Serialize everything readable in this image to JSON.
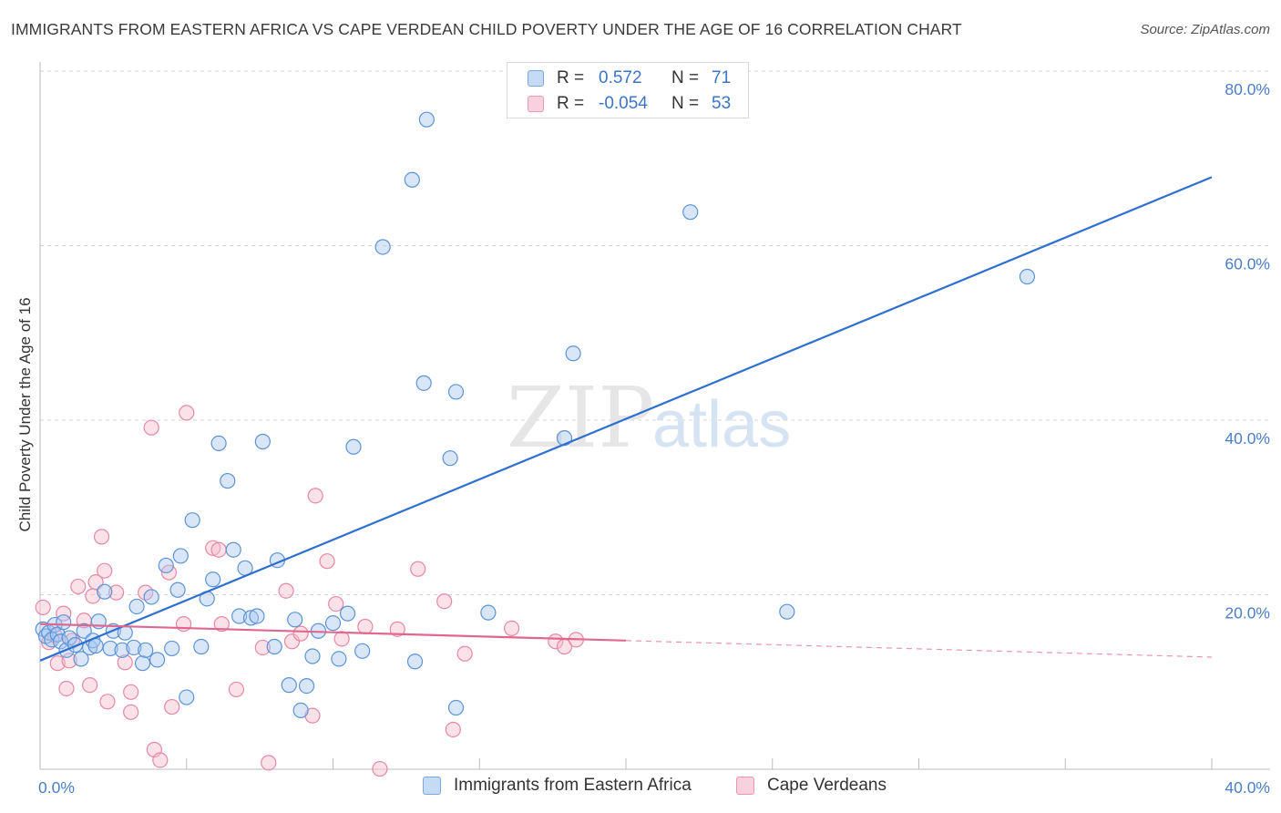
{
  "header": {
    "title": "IMMIGRANTS FROM EASTERN AFRICA VS CAPE VERDEAN CHILD POVERTY UNDER THE AGE OF 16 CORRELATION CHART",
    "source": "Source: ZipAtlas.com"
  },
  "legend": {
    "r_label": "R =",
    "n_label": "N =",
    "series": [
      {
        "name": "Immigrants from Eastern Africa",
        "r": "0.572",
        "n": "71",
        "color": "#5b93d8"
      },
      {
        "name": "Cape Verdeans",
        "r": "-0.054",
        "n": "53",
        "color": "#e887a6"
      }
    ]
  },
  "watermark": {
    "zip": "ZIP",
    "atlas": "atlas"
  },
  "colors": {
    "blue_fill": "#a9c8ef",
    "blue_stroke": "#5b93d8",
    "blue_line": "#2e6fd0",
    "pink_fill": "#f6bccd",
    "pink_stroke": "#e887a6",
    "pink_line": "#e0688f",
    "tick_text": "#4a7ec9",
    "grid": "#d6d6d6"
  },
  "chart_data": {
    "type": "scatter",
    "title": "IMMIGRANTS FROM EASTERN AFRICA VS CAPE VERDEAN CHILD POVERTY UNDER THE AGE OF 16 CORRELATION CHART",
    "xlabel": "",
    "ylabel": "Child Poverty Under the Age of 16",
    "xlim": [
      0,
      40
    ],
    "ylim": [
      0,
      80
    ],
    "x_tick_labels": [
      "0.0%",
      "40.0%"
    ],
    "y_tick_labels": [
      {
        "value": 20,
        "label": "20.0%"
      },
      {
        "value": 40,
        "label": "40.0%"
      },
      {
        "value": 60,
        "label": "60.0%"
      },
      {
        "value": 80,
        "label": "80.0%"
      }
    ],
    "grid": true,
    "legend_position": "bottom-center",
    "series": [
      {
        "name": "Immigrants from Eastern Africa",
        "points": [
          [
            0.1,
            17.3
          ],
          [
            0.2,
            16.5
          ],
          [
            0.3,
            16.9
          ],
          [
            0.4,
            16.1
          ],
          [
            0.5,
            17.8
          ],
          [
            0.6,
            16.7
          ],
          [
            0.7,
            15.9
          ],
          [
            0.8,
            18.1
          ],
          [
            0.9,
            14.9
          ],
          [
            1.0,
            16.3
          ],
          [
            1.2,
            15.5
          ],
          [
            1.4,
            13.9
          ],
          [
            1.5,
            17.1
          ],
          [
            1.7,
            15.2
          ],
          [
            1.8,
            16.0
          ],
          [
            1.9,
            15.4
          ],
          [
            2.0,
            18.2
          ],
          [
            2.2,
            21.6
          ],
          [
            2.4,
            15.1
          ],
          [
            2.5,
            17.1
          ],
          [
            2.8,
            14.9
          ],
          [
            2.9,
            16.9
          ],
          [
            3.2,
            15.2
          ],
          [
            3.3,
            19.9
          ],
          [
            3.5,
            13.4
          ],
          [
            3.6,
            14.9
          ],
          [
            3.8,
            21.0
          ],
          [
            4.0,
            13.8
          ],
          [
            4.3,
            24.6
          ],
          [
            4.5,
            15.1
          ],
          [
            4.7,
            21.8
          ],
          [
            4.8,
            25.7
          ],
          [
            5.0,
            9.5
          ],
          [
            5.2,
            29.8
          ],
          [
            5.5,
            15.3
          ],
          [
            5.7,
            20.8
          ],
          [
            5.9,
            23.0
          ],
          [
            6.1,
            38.6
          ],
          [
            6.4,
            34.3
          ],
          [
            6.6,
            26.4
          ],
          [
            6.8,
            18.8
          ],
          [
            7.0,
            24.3
          ],
          [
            7.2,
            18.6
          ],
          [
            7.4,
            18.8
          ],
          [
            7.6,
            38.8
          ],
          [
            8.0,
            15.3
          ],
          [
            8.1,
            25.2
          ],
          [
            8.5,
            10.9
          ],
          [
            8.7,
            18.4
          ],
          [
            8.9,
            8.0
          ],
          [
            9.1,
            10.8
          ],
          [
            9.3,
            14.2
          ],
          [
            9.5,
            17.1
          ],
          [
            10.0,
            18.0
          ],
          [
            10.2,
            13.9
          ],
          [
            10.5,
            19.1
          ],
          [
            10.7,
            38.2
          ],
          [
            11.0,
            14.8
          ],
          [
            11.7,
            61.1
          ],
          [
            12.7,
            68.8
          ],
          [
            12.8,
            13.6
          ],
          [
            13.1,
            45.5
          ],
          [
            13.2,
            75.7
          ],
          [
            14.0,
            36.9
          ],
          [
            14.2,
            44.5
          ],
          [
            14.2,
            8.3
          ],
          [
            15.3,
            19.2
          ],
          [
            17.9,
            39.2
          ],
          [
            18.2,
            48.9
          ],
          [
            22.2,
            65.1
          ],
          [
            25.5,
            19.3
          ],
          [
            33.7,
            57.7
          ]
        ],
        "trend": {
          "x": [
            0,
            40
          ],
          "y": [
            13.7,
            69.1
          ]
        }
      },
      {
        "name": "Cape Verdeans",
        "points": [
          [
            0.1,
            19.8
          ],
          [
            0.3,
            15.8
          ],
          [
            0.5,
            16.6
          ],
          [
            0.6,
            13.4
          ],
          [
            0.8,
            19.1
          ],
          [
            0.9,
            10.5
          ],
          [
            1.0,
            13.7
          ],
          [
            1.1,
            16.0
          ],
          [
            1.3,
            22.2
          ],
          [
            1.5,
            18.3
          ],
          [
            1.7,
            10.9
          ],
          [
            1.8,
            21.1
          ],
          [
            1.9,
            22.7
          ],
          [
            2.1,
            27.9
          ],
          [
            2.2,
            24.0
          ],
          [
            2.3,
            9.0
          ],
          [
            2.6,
            21.5
          ],
          [
            2.9,
            13.5
          ],
          [
            3.1,
            10.1
          ],
          [
            3.1,
            7.8
          ],
          [
            3.6,
            21.5
          ],
          [
            3.8,
            40.4
          ],
          [
            3.9,
            3.5
          ],
          [
            4.1,
            2.3
          ],
          [
            4.4,
            23.8
          ],
          [
            4.5,
            8.4
          ],
          [
            4.9,
            17.9
          ],
          [
            5.0,
            42.1
          ],
          [
            5.9,
            26.6
          ],
          [
            6.1,
            26.4
          ],
          [
            6.2,
            17.9
          ],
          [
            6.7,
            10.4
          ],
          [
            7.6,
            15.2
          ],
          [
            7.8,
            2.0
          ],
          [
            8.4,
            21.7
          ],
          [
            8.6,
            15.9
          ],
          [
            8.9,
            16.8
          ],
          [
            9.3,
            7.4
          ],
          [
            9.4,
            32.6
          ],
          [
            9.8,
            25.1
          ],
          [
            10.1,
            20.2
          ],
          [
            10.3,
            16.2
          ],
          [
            11.1,
            17.6
          ],
          [
            11.6,
            1.3
          ],
          [
            12.2,
            17.3
          ],
          [
            12.9,
            24.2
          ],
          [
            13.8,
            20.5
          ],
          [
            14.1,
            5.8
          ],
          [
            14.5,
            14.5
          ],
          [
            16.1,
            17.4
          ],
          [
            17.6,
            15.9
          ],
          [
            17.9,
            15.3
          ],
          [
            18.3,
            16.1
          ]
        ],
        "trend_solid": {
          "x": [
            0,
            20
          ],
          "y": [
            17.9,
            16.0
          ]
        },
        "trend_dashed": {
          "x": [
            20,
            40
          ],
          "y": [
            16.0,
            14.1
          ]
        }
      }
    ]
  }
}
